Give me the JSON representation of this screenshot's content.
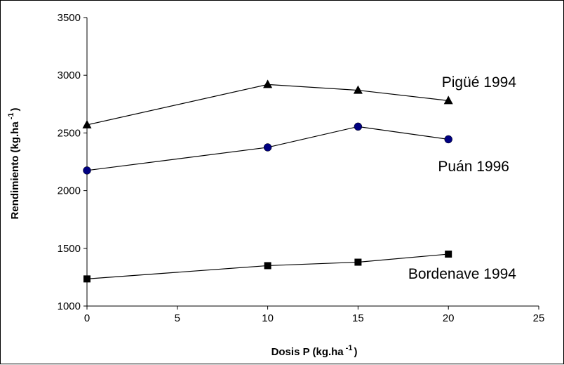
{
  "chart_data": {
    "type": "line",
    "xlabel": {
      "text": "Dosis P (kg.ha",
      "sup": "-1",
      "close": ")"
    },
    "ylabel": {
      "text": "Rendimiento (kg.ha",
      "sup": "-1",
      "close": ")"
    },
    "xlim": [
      0,
      25
    ],
    "ylim": [
      1000,
      3500
    ],
    "xticks": [
      0,
      5,
      10,
      15,
      20,
      25
    ],
    "yticks": [
      1000,
      1500,
      2000,
      2500,
      3000,
      3500
    ],
    "grid": false,
    "legend": "none",
    "series": [
      {
        "name": "Pigüé 1994",
        "marker": "triangle",
        "color": "#000000",
        "x": [
          0,
          10,
          15,
          20
        ],
        "y": [
          2570,
          2920,
          2870,
          2780
        ]
      },
      {
        "name": "Puán 1996",
        "marker": "circle",
        "color": "#000080",
        "x": [
          0,
          10,
          15,
          20
        ],
        "y": [
          2175,
          2375,
          2555,
          2445
        ]
      },
      {
        "name": "Bordenave 1994",
        "marker": "square",
        "color": "#000000",
        "x": [
          0,
          10,
          15,
          20
        ],
        "y": [
          1235,
          1350,
          1380,
          1450
        ]
      }
    ]
  }
}
